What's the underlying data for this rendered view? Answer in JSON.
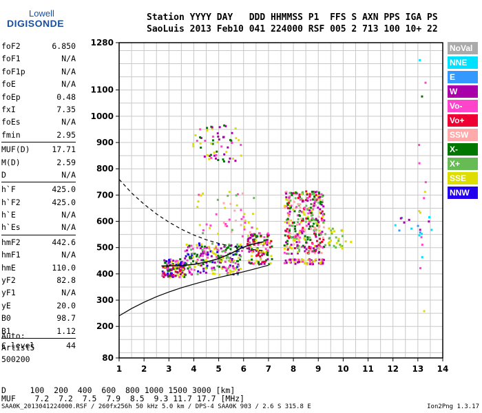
{
  "logo": {
    "line1": "Lowell",
    "line2": "DIGISONDE"
  },
  "header": {
    "line1": "Station YYYY DAY   DDD HHMMSS P1  FFS S AXN PPS IGA PS",
    "line2": "SaoLuis 2013 Feb10 041 224000 RSF 005 2 713 100 10+ 22"
  },
  "params": [
    {
      "k": "foF2",
      "v": "6.850"
    },
    {
      "k": "foF1",
      "v": "N/A"
    },
    {
      "k": "foF1p",
      "v": "N/A"
    },
    {
      "k": "foE",
      "v": "N/A"
    },
    {
      "k": "foEp",
      "v": "0.48"
    },
    {
      "k": "fxI",
      "v": "7.35"
    },
    {
      "k": "foEs",
      "v": "N/A"
    },
    {
      "k": "fmin",
      "v": "2.95"
    },
    {
      "sep": true
    },
    {
      "k": "MUF(D)",
      "v": "17.71"
    },
    {
      "k": "M(D)",
      "v": "2.59"
    },
    {
      "k": "D",
      "v": "N/A"
    },
    {
      "sep": true
    },
    {
      "k": "h`F",
      "v": "425.0"
    },
    {
      "k": "h`F2",
      "v": "425.0"
    },
    {
      "k": "h`E",
      "v": "N/A"
    },
    {
      "k": "h`Es",
      "v": "N/A"
    },
    {
      "sep": true
    },
    {
      "k": "hmF2",
      "v": "442.6"
    },
    {
      "k": "hmF1",
      "v": "N/A"
    },
    {
      "k": "hmE",
      "v": "110.0"
    },
    {
      "k": "yF2",
      "v": "82.8"
    },
    {
      "k": "yF1",
      "v": "N/A"
    },
    {
      "k": "yE",
      "v": "20.0"
    },
    {
      "k": "B0",
      "v": "98.7"
    },
    {
      "k": "B1",
      "v": "1.12"
    },
    {
      "sep": true
    },
    {
      "k": "C-level",
      "v": "44"
    }
  ],
  "extra": {
    "line1": "Auto:",
    "line2": "Artist5",
    "line3": "500200"
  },
  "legend": [
    {
      "label": "NoVal",
      "color": "#aaaaaa"
    },
    {
      "label": "NNE",
      "color": "#00e0ff"
    },
    {
      "label": "E",
      "color": "#3399ff"
    },
    {
      "label": "W",
      "color": "#aa00aa"
    },
    {
      "label": "Vo-",
      "color": "#ff44cc"
    },
    {
      "label": "Vo+",
      "color": "#ee0033"
    },
    {
      "label": "SSW",
      "color": "#ffaaaa"
    },
    {
      "label": "X-",
      "color": "#007700"
    },
    {
      "label": "X+",
      "color": "#66bb55"
    },
    {
      "label": "SSE",
      "color": "#dddd00"
    },
    {
      "label": "NNW",
      "color": "#2200ee"
    }
  ],
  "bottom": {
    "line1": "D     100  200  400  600  800 1000 1500 3000 [km]",
    "line2": "MUF    7.2  7.2  7.5  7.9  8.5  9.3 11.7 17.7 [MHz]"
  },
  "footer": {
    "left": "SAA0K_2013041224000.RSF / 260fx256h 50 kHz 5.0 km / DPS-4 SAA0K 903 / 2.6 S 315.8 E",
    "right": "Ion2Png 1.3.17"
  },
  "chart_data": {
    "type": "scatter",
    "xlim": [
      1,
      14
    ],
    "ylim": [
      80,
      1280
    ],
    "x_ticks": [
      1,
      2,
      3,
      4,
      5,
      6,
      7,
      8,
      9,
      10,
      11,
      12,
      13,
      14
    ],
    "y_ticks": [
      80,
      200,
      300,
      400,
      500,
      600,
      700,
      800,
      900,
      1000,
      1100,
      1280
    ],
    "grid": true,
    "legend_position": "right",
    "trace_clusters": [
      {
        "x": [
          2.7,
          3.6
        ],
        "y": [
          390,
          460
        ],
        "n": 140,
        "colors": [
          "#aa00aa",
          "#ff44cc",
          "#007700",
          "#dddd00",
          "#2200ee",
          "#ee0033"
        ]
      },
      {
        "x": [
          3.6,
          5.9
        ],
        "y": [
          400,
          520
        ],
        "n": 220,
        "colors": [
          "#aa00aa",
          "#ff44cc",
          "#007700",
          "#dddd00",
          "#2200ee",
          "#66bb55"
        ]
      },
      {
        "x": [
          6.1,
          7.1
        ],
        "y": [
          440,
          560
        ],
        "n": 130,
        "colors": [
          "#aa00aa",
          "#ff44cc",
          "#dddd00",
          "#007700",
          "#ee0033"
        ]
      },
      {
        "x": [
          7.6,
          9.2
        ],
        "y": [
          480,
          720
        ],
        "n": 380,
        "colors": [
          "#aa00aa",
          "#ff44cc",
          "#dddd00",
          "#007700",
          "#ee0033",
          "#ffaaaa",
          "#66bb55"
        ]
      },
      {
        "x": [
          7.6,
          9.2
        ],
        "y": [
          440,
          460
        ],
        "n": 60,
        "colors": [
          "#dddd00",
          "#ff44cc",
          "#aa00aa"
        ]
      },
      {
        "x": [
          3.9,
          5.9
        ],
        "y": [
          830,
          970
        ],
        "n": 60,
        "colors": [
          "#007700",
          "#dddd00",
          "#aa00aa",
          "#ff44cc"
        ]
      },
      {
        "x": [
          4.1,
          6.5
        ],
        "y": [
          540,
          720
        ],
        "n": 50,
        "colors": [
          "#dddd00",
          "#ffaaaa",
          "#66bb55",
          "#ff44cc"
        ]
      },
      {
        "x": [
          9.2,
          10.4
        ],
        "y": [
          500,
          580
        ],
        "n": 30,
        "colors": [
          "#dddd00",
          "#66bb55"
        ]
      },
      {
        "x": [
          12.0,
          13.6
        ],
        "y": [
          540,
          620
        ],
        "n": 14,
        "colors": [
          "#00e0ff",
          "#3399ff",
          "#aa00aa"
        ]
      },
      {
        "x": [
          13.0,
          13.3
        ],
        "y": [
          170,
          1280
        ],
        "n": 16,
        "colors": [
          "#007700",
          "#dddd00",
          "#00e0ff",
          "#ff44cc"
        ]
      }
    ],
    "virtual_height_curve": {
      "x": [
        2.7,
        3.0,
        3.5,
        4.0,
        4.5,
        5.0,
        5.5,
        5.9,
        6.3,
        6.8
      ],
      "y": [
        430,
        430,
        432,
        436,
        445,
        458,
        478,
        498,
        512,
        522
      ]
    },
    "profile_curve": {
      "x": [
        1.0,
        1.5,
        2.0,
        2.5,
        3.0,
        3.5,
        4.0,
        4.5,
        5.0,
        5.5,
        6.0,
        6.5,
        7.0
      ],
      "y": [
        240,
        268,
        292,
        313,
        331,
        347,
        361,
        374,
        386,
        397,
        408,
        420,
        433
      ]
    },
    "muf_dashed_curve": {
      "x": [
        1.0,
        1.5,
        2.0,
        2.5,
        3.0,
        3.5,
        4.0,
        4.5,
        5.0,
        5.5,
        6.0,
        6.5,
        6.85
      ],
      "y": [
        760,
        708,
        665,
        628,
        597,
        570,
        548,
        530,
        516,
        505,
        497,
        491,
        488
      ]
    }
  }
}
